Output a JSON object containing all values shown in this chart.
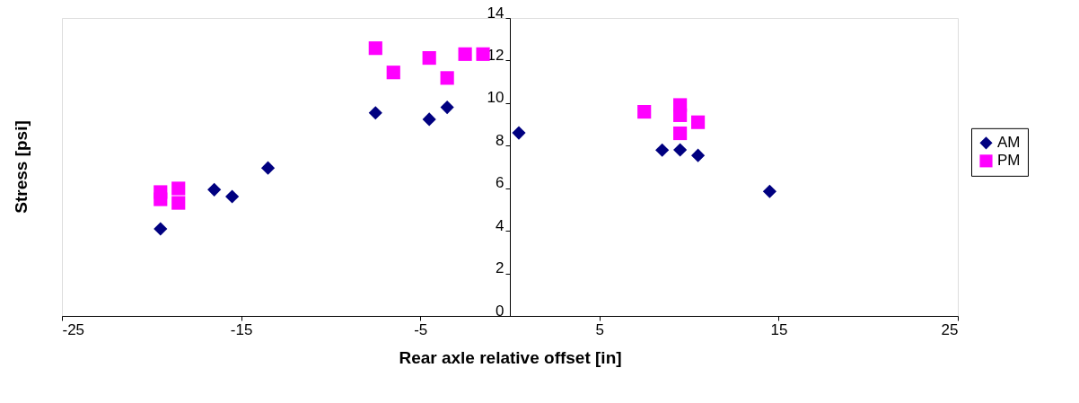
{
  "chart_data": {
    "type": "scatter",
    "xlabel": "Rear axle relative offset [in]",
    "ylabel": "Stress [psi]",
    "xlim": [
      -25,
      25
    ],
    "xticks": [
      -25,
      -15,
      -5,
      5,
      15,
      25
    ],
    "ylim": [
      0,
      14
    ],
    "yticks": [
      0,
      2,
      4,
      6,
      8,
      10,
      12,
      14
    ],
    "grid": false,
    "legend": "right",
    "series": [
      {
        "name": "AM",
        "color": "#000080",
        "marker": "diamond",
        "x": [
          -19.5,
          -16.5,
          -15.5,
          -13.5,
          -7.5,
          -4.5,
          -3.5,
          0.5,
          8.5,
          9.5,
          10.5,
          14.5
        ],
        "values": [
          4.09,
          5.93,
          5.61,
          6.95,
          9.54,
          9.24,
          9.8,
          8.6,
          7.79,
          7.8,
          7.54,
          5.85
        ]
      },
      {
        "name": "PM",
        "color": "#ff00ff",
        "marker": "square",
        "x": [
          -19.5,
          -19.5,
          -18.5,
          -18.5,
          -7.5,
          -6.5,
          -4.5,
          -3.5,
          -2.5,
          -1.5,
          7.5,
          9.5,
          9.5,
          9.5,
          10.5
        ],
        "values": [
          5.82,
          5.48,
          5.99,
          5.31,
          12.58,
          11.44,
          12.12,
          11.18,
          12.3,
          12.3,
          9.59,
          9.91,
          9.43,
          8.58,
          9.1
        ]
      }
    ]
  }
}
